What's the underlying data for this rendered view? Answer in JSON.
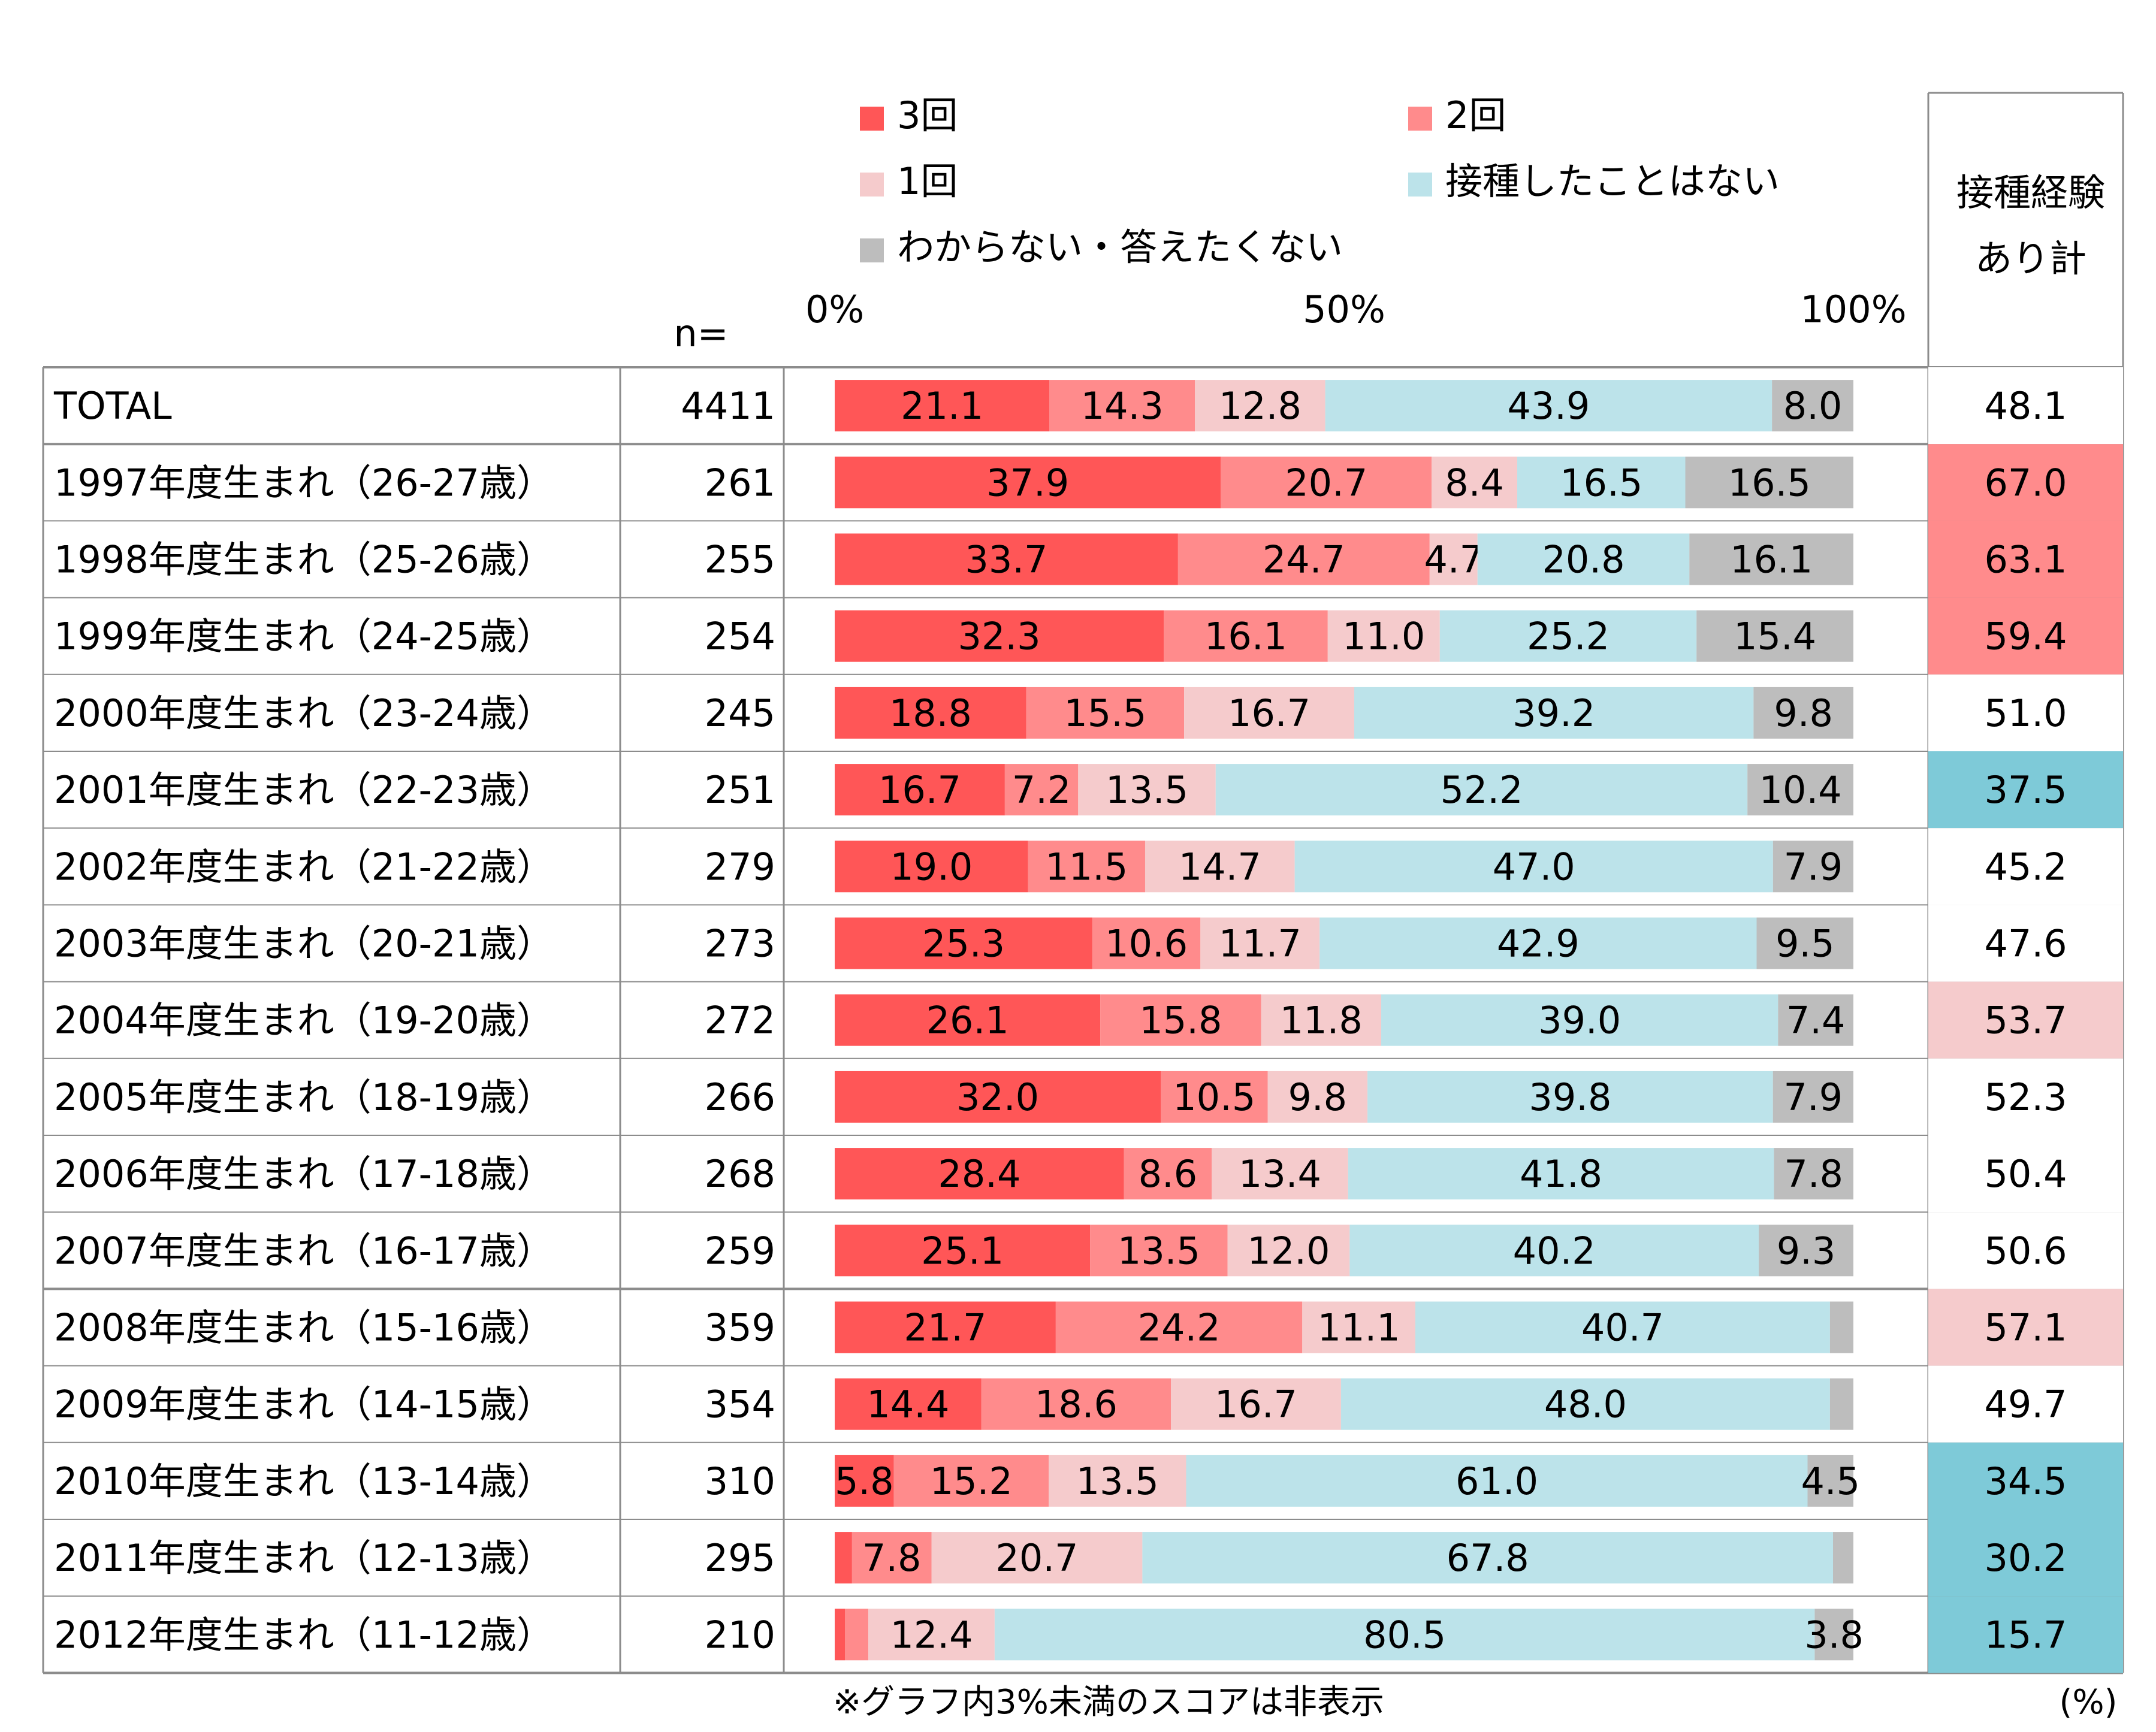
{
  "chart_data": {
    "type": "bar",
    "stacked": true,
    "orientation": "horizontal",
    "legend": [
      "3回",
      "2回",
      "1回",
      "接種したことはない",
      "わからない・答えたくない"
    ],
    "series_colors": [
      "#FF5657",
      "#FF8B8C",
      "#F5CBCC",
      "#BCE3EA",
      "#BDBDBD"
    ],
    "n_header": "n=",
    "total_header": "接種経験あり計",
    "axis_ticks": [
      "0%",
      "50%",
      "100%"
    ],
    "xlim": [
      0,
      100
    ],
    "unit_note": "(%)",
    "footnote": "※グラフ内3%未満のスコアは非表示",
    "rows": [
      {
        "label": "TOTAL",
        "n": "4411",
        "values": [
          21.1,
          14.3,
          12.8,
          43.9,
          8.0
        ],
        "total": "48.1",
        "highlight": "none"
      },
      {
        "label": "1997年度生まれ（26-27歳）",
        "n": "261",
        "values": [
          37.9,
          20.7,
          8.4,
          16.5,
          16.5
        ],
        "total": "67.0",
        "highlight": "high"
      },
      {
        "label": "1998年度生まれ（25-26歳）",
        "n": "255",
        "values": [
          33.7,
          24.7,
          4.7,
          20.8,
          16.1
        ],
        "total": "63.1",
        "highlight": "high"
      },
      {
        "label": "1999年度生まれ（24-25歳）",
        "n": "254",
        "values": [
          32.3,
          16.1,
          11.0,
          25.2,
          15.4
        ],
        "total": "59.4",
        "highlight": "high"
      },
      {
        "label": "2000年度生まれ（23-24歳）",
        "n": "245",
        "values": [
          18.8,
          15.5,
          16.7,
          39.2,
          9.8
        ],
        "total": "51.0",
        "highlight": "none"
      },
      {
        "label": "2001年度生まれ（22-23歳）",
        "n": "251",
        "values": [
          16.7,
          7.2,
          13.5,
          52.2,
          10.4
        ],
        "total": "37.5",
        "highlight": "low"
      },
      {
        "label": "2002年度生まれ（21-22歳）",
        "n": "279",
        "values": [
          19.0,
          11.5,
          14.7,
          47.0,
          7.9
        ],
        "total": "45.2",
        "highlight": "none"
      },
      {
        "label": "2003年度生まれ（20-21歳）",
        "n": "273",
        "values": [
          25.3,
          10.6,
          11.7,
          42.9,
          9.5
        ],
        "total": "47.6",
        "highlight": "none"
      },
      {
        "label": "2004年度生まれ（19-20歳）",
        "n": "272",
        "values": [
          26.1,
          15.8,
          11.8,
          39.0,
          7.4
        ],
        "total": "53.7",
        "highlight": "mid"
      },
      {
        "label": "2005年度生まれ（18-19歳）",
        "n": "266",
        "values": [
          32.0,
          10.5,
          9.8,
          39.8,
          7.9
        ],
        "total": "52.3",
        "highlight": "none"
      },
      {
        "label": "2006年度生まれ（17-18歳）",
        "n": "268",
        "values": [
          28.4,
          8.6,
          13.4,
          41.8,
          7.8
        ],
        "total": "50.4",
        "highlight": "none"
      },
      {
        "label": "2007年度生まれ（16-17歳）",
        "n": "259",
        "values": [
          25.1,
          13.5,
          12.0,
          40.2,
          9.3
        ],
        "total": "50.6",
        "highlight": "none"
      },
      {
        "label": "2008年度生まれ（15-16歳）",
        "n": "359",
        "values": [
          21.7,
          24.2,
          11.1,
          40.7,
          2.3
        ],
        "total": "57.1",
        "highlight": "mid"
      },
      {
        "label": "2009年度生まれ（14-15歳）",
        "n": "354",
        "values": [
          14.4,
          18.6,
          16.7,
          48.0,
          2.3
        ],
        "total": "49.7",
        "highlight": "none"
      },
      {
        "label": "2010年度生まれ（13-14歳）",
        "n": "310",
        "values": [
          5.8,
          15.2,
          13.5,
          61.0,
          4.5
        ],
        "total": "34.5",
        "highlight": "low"
      },
      {
        "label": "2011年度生まれ（12-13歳）",
        "n": "295",
        "values": [
          1.7,
          7.8,
          20.7,
          67.8,
          2.0
        ],
        "total": "30.2",
        "highlight": "low"
      },
      {
        "label": "2012年度生まれ（11-12歳）",
        "n": "210",
        "values": [
          1.0,
          2.3,
          12.4,
          80.5,
          3.8
        ],
        "total": "15.7",
        "highlight": "low"
      }
    ],
    "highlight_colors": {
      "high": "#FF8B8C",
      "mid": "#F5CBCC",
      "low": "#7ECAD8",
      "none": "#FFFFFF"
    },
    "hidden_threshold": 3
  }
}
